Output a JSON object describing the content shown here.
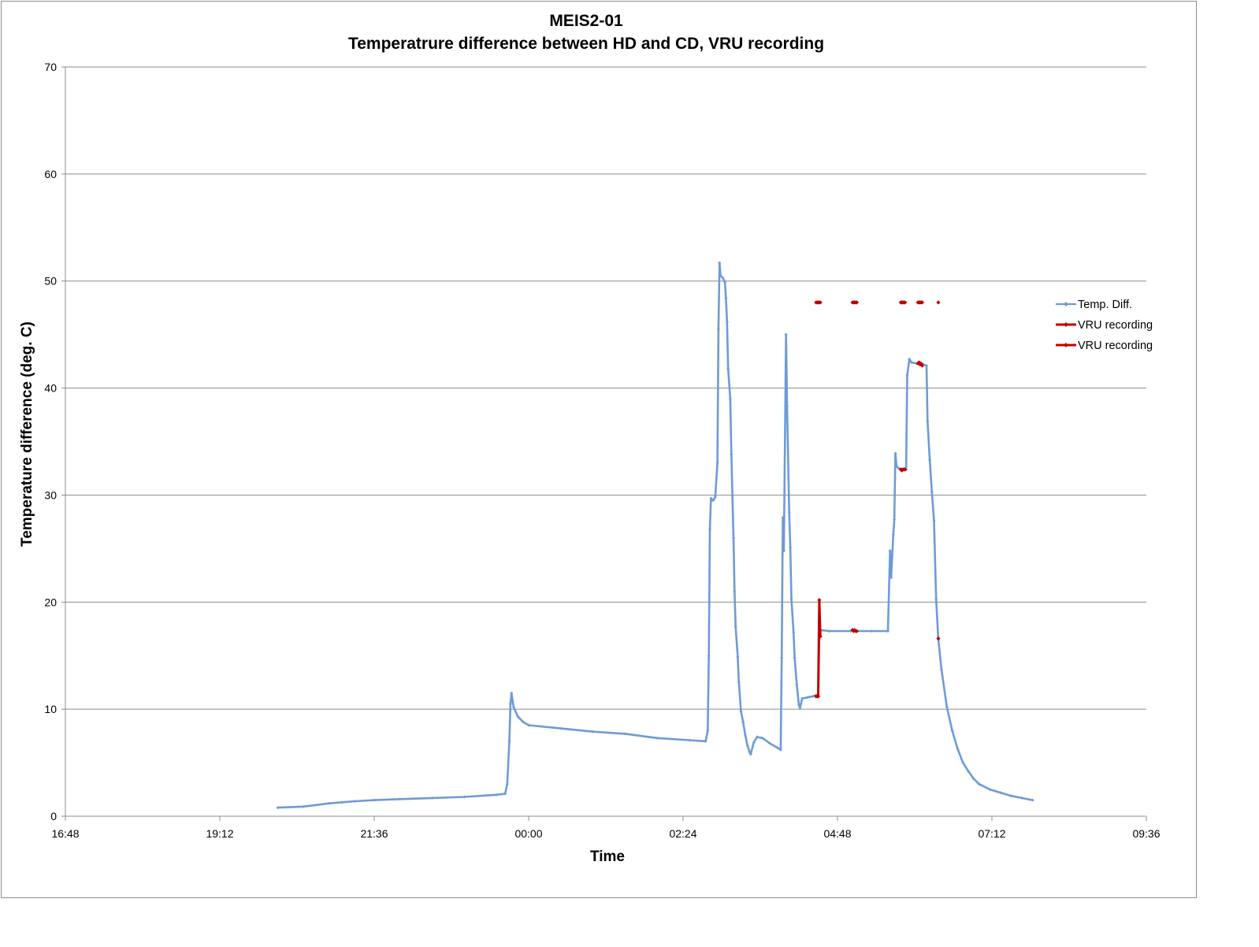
{
  "chart_data": {
    "type": "line",
    "title": "MEIS2-01",
    "subtitle": "Temperatrure difference between HD and CD, VRU recording",
    "xlabel": "Time",
    "ylabel": "Temperature difference (deg. C)",
    "ylim": [
      0,
      70
    ],
    "yticks": [
      0,
      10,
      20,
      30,
      40,
      50,
      60,
      70
    ],
    "xlim": [
      "16:48",
      "09:36"
    ],
    "xticks": [
      "16:48",
      "19:12",
      "21:36",
      "00:00",
      "02:24",
      "04:48",
      "07:12",
      "09:36"
    ],
    "grid": true,
    "legend_position": "right",
    "series": [
      {
        "name": "Temp. Diff.",
        "color": "#6f9bd6",
        "style": "line-with-markers",
        "points": [
          [
            "20:06",
            0.8
          ],
          [
            "20:30",
            0.9
          ],
          [
            "20:54",
            1.2
          ],
          [
            "21:06",
            1.3
          ],
          [
            "21:18",
            1.4
          ],
          [
            "21:36",
            1.5
          ],
          [
            "22:00",
            1.6
          ],
          [
            "22:30",
            1.7
          ],
          [
            "23:00",
            1.8
          ],
          [
            "23:30",
            2.0
          ],
          [
            "23:38",
            2.1
          ],
          [
            "23:40",
            3.0
          ],
          [
            "23:42",
            7.0
          ],
          [
            "23:43",
            10.5
          ],
          [
            "23:44",
            11.5
          ],
          [
            "23:46",
            10.2
          ],
          [
            "23:50",
            9.3
          ],
          [
            "23:55",
            8.8
          ],
          [
            "00:00",
            8.5
          ],
          [
            "00:30",
            8.2
          ],
          [
            "01:00",
            7.9
          ],
          [
            "01:30",
            7.7
          ],
          [
            "02:00",
            7.3
          ],
          [
            "02:30",
            7.1
          ],
          [
            "02:45",
            7.0
          ],
          [
            "02:47",
            8.0
          ],
          [
            "02:48",
            15.0
          ],
          [
            "02:49",
            26.8
          ],
          [
            "02:50",
            29.7
          ],
          [
            "02:52",
            29.5
          ],
          [
            "02:54",
            29.8
          ],
          [
            "02:56",
            33.0
          ],
          [
            "02:57",
            45.5
          ],
          [
            "02:58",
            51.7
          ],
          [
            "02:59",
            50.5
          ],
          [
            "03:01",
            50.3
          ],
          [
            "03:03",
            49.9
          ],
          [
            "03:04",
            48.4
          ],
          [
            "03:05",
            46.2
          ],
          [
            "03:06",
            41.8
          ],
          [
            "03:08",
            39.0
          ],
          [
            "03:09",
            33.8
          ],
          [
            "03:11",
            26.0
          ],
          [
            "03:12",
            21.0
          ],
          [
            "03:13",
            17.7
          ],
          [
            "03:15",
            14.9
          ],
          [
            "03:16",
            12.5
          ],
          [
            "03:18",
            9.8
          ],
          [
            "03:20",
            8.8
          ],
          [
            "03:22",
            7.6
          ],
          [
            "03:24",
            6.6
          ],
          [
            "03:26",
            6.0
          ],
          [
            "03:27",
            5.8
          ],
          [
            "03:30",
            6.9
          ],
          [
            "03:33",
            7.4
          ],
          [
            "03:38",
            7.3
          ],
          [
            "03:45",
            6.8
          ],
          [
            "03:52",
            6.4
          ],
          [
            "03:55",
            6.2
          ],
          [
            "03:56",
            14.8
          ],
          [
            "03:57",
            27.9
          ],
          [
            "03:58",
            24.8
          ],
          [
            "04:00",
            45.0
          ],
          [
            "04:01",
            38.3
          ],
          [
            "04:03",
            28.4
          ],
          [
            "04:04",
            25.1
          ],
          [
            "04:05",
            20.3
          ],
          [
            "04:07",
            17.2
          ],
          [
            "04:08",
            14.8
          ],
          [
            "04:10",
            12.3
          ],
          [
            "04:12",
            10.4
          ],
          [
            "04:13",
            10.1
          ],
          [
            "04:15",
            11.0
          ],
          [
            "04:20",
            11.1
          ],
          [
            "04:25",
            11.2
          ],
          [
            "04:28",
            11.3
          ],
          [
            "04:30",
            11.3
          ],
          [
            "04:31",
            17.0
          ],
          [
            "04:32",
            17.4
          ],
          [
            "04:40",
            17.3
          ],
          [
            "05:00",
            17.3
          ],
          [
            "05:20",
            17.3
          ],
          [
            "05:35",
            17.3
          ],
          [
            "05:37",
            24.8
          ],
          [
            "05:38",
            22.3
          ],
          [
            "05:40",
            26.3
          ],
          [
            "05:41",
            27.7
          ],
          [
            "05:42",
            33.9
          ],
          [
            "05:43",
            32.7
          ],
          [
            "05:45",
            32.5
          ],
          [
            "05:50",
            32.4
          ],
          [
            "05:52",
            32.4
          ],
          [
            "05:53",
            41.2
          ],
          [
            "05:55",
            42.7
          ],
          [
            "05:57",
            42.4
          ],
          [
            "06:02",
            42.3
          ],
          [
            "06:08",
            42.2
          ],
          [
            "06:11",
            42.1
          ],
          [
            "06:12",
            36.9
          ],
          [
            "06:14",
            33.3
          ],
          [
            "06:16",
            30.3
          ],
          [
            "06:18",
            27.6
          ],
          [
            "06:20",
            20.3
          ],
          [
            "06:22",
            16.6
          ],
          [
            "06:25",
            13.7
          ],
          [
            "06:30",
            10.2
          ],
          [
            "06:35",
            8.0
          ],
          [
            "06:40",
            6.3
          ],
          [
            "06:45",
            5.0
          ],
          [
            "06:50",
            4.2
          ],
          [
            "06:55",
            3.5
          ],
          [
            "07:00",
            3.0
          ],
          [
            "07:10",
            2.5
          ],
          [
            "07:20",
            2.2
          ],
          [
            "07:30",
            1.9
          ],
          [
            "07:40",
            1.7
          ],
          [
            "07:50",
            1.5
          ]
        ]
      },
      {
        "name": "VRU recording",
        "color": "#c00000",
        "style": "line-with-markers",
        "points": [
          [
            "04:28",
            11.2
          ],
          [
            "04:29",
            11.2
          ],
          [
            "04:30",
            11.2
          ],
          [
            "04:31",
            20.2
          ],
          [
            "04:32",
            16.8
          ]
        ]
      },
      {
        "name": "VRU recording",
        "color": "#c00000",
        "style": "markers-only",
        "points": [
          [
            "04:28",
            48.0
          ],
          [
            "04:29",
            48.0
          ],
          [
            "04:30",
            48.0
          ],
          [
            "04:31",
            48.0
          ],
          [
            "04:32",
            48.0
          ],
          [
            "05:02",
            48.0
          ],
          [
            "05:03",
            48.0
          ],
          [
            "05:04",
            48.0
          ],
          [
            "05:05",
            48.0
          ],
          [
            "05:06",
            48.0
          ],
          [
            "05:02",
            17.4
          ],
          [
            "05:03",
            17.3
          ],
          [
            "05:04",
            17.4
          ],
          [
            "05:05",
            17.3
          ],
          [
            "05:06",
            17.3
          ],
          [
            "05:47",
            48.0
          ],
          [
            "05:48",
            48.0
          ],
          [
            "05:49",
            48.0
          ],
          [
            "05:50",
            48.0
          ],
          [
            "05:51",
            48.0
          ],
          [
            "05:47",
            32.4
          ],
          [
            "05:48",
            32.3
          ],
          [
            "05:49",
            32.4
          ],
          [
            "05:50",
            32.4
          ],
          [
            "05:51",
            32.4
          ],
          [
            "06:03",
            48.0
          ],
          [
            "06:04",
            48.0
          ],
          [
            "06:05",
            48.0
          ],
          [
            "06:06",
            48.0
          ],
          [
            "06:07",
            48.0
          ],
          [
            "06:03",
            42.3
          ],
          [
            "06:04",
            42.4
          ],
          [
            "06:05",
            42.2
          ],
          [
            "06:06",
            42.3
          ],
          [
            "06:07",
            42.1
          ],
          [
            "06:22",
            48.0
          ],
          [
            "06:22",
            16.6
          ]
        ]
      }
    ]
  }
}
